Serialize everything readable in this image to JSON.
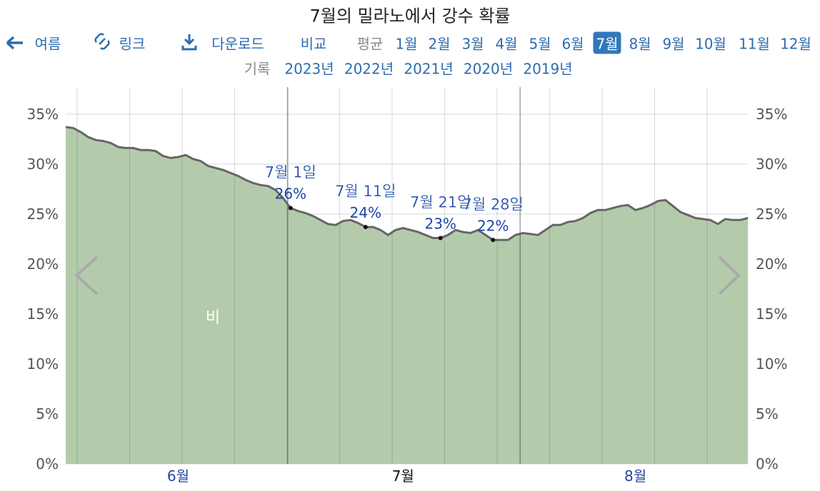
{
  "header": {
    "title": "7월의 밀라노에서 강수 확률",
    "nav": {
      "back": "여름",
      "link": "링크",
      "download": "다운로드",
      "compare": "비교",
      "average": "평균",
      "months": [
        "1월",
        "2월",
        "3월",
        "4월",
        "5월",
        "6월",
        "7월",
        "8월",
        "9월",
        "10월",
        "11월",
        "12월"
      ],
      "selected_month": 6,
      "records": "기록",
      "years": [
        "2023년",
        "2022년",
        "2021년",
        "2020년",
        "2019년"
      ]
    }
  },
  "chart_data": {
    "type": "area",
    "color": "#b4cbab",
    "line_color": "#666666",
    "grid": true,
    "categories": [
      null,
      null,
      null,
      null,
      null,
      null,
      null,
      null,
      null,
      null,
      null,
      null,
      null,
      null,
      null,
      "6월",
      null,
      null,
      null,
      null,
      null,
      null,
      null,
      null,
      null,
      null,
      null,
      null,
      null,
      null,
      null,
      null,
      null,
      null,
      null,
      null,
      null,
      null,
      null,
      null,
      null,
      null,
      null,
      null,
      null,
      "7월",
      null,
      null,
      null,
      null,
      null,
      null,
      null,
      null,
      null,
      null,
      null,
      null,
      null,
      null,
      null,
      null,
      null,
      null,
      null,
      null,
      null,
      null,
      null,
      null,
      null,
      null,
      null,
      null,
      null,
      null,
      "8월",
      null,
      null,
      null,
      null,
      null,
      null,
      null,
      null,
      null,
      null,
      null,
      null,
      null,
      null,
      null
    ],
    "values": [
      33.7,
      33.6,
      33.2,
      32.7,
      32.4,
      32.3,
      32.1,
      31.7,
      31.6,
      31.6,
      31.4,
      31.4,
      31.3,
      30.8,
      30.6,
      30.7,
      30.9,
      30.5,
      30.3,
      29.8,
      29.6,
      29.4,
      29.1,
      28.8,
      28.4,
      28.1,
      27.9,
      27.8,
      27.4,
      26.6,
      25.6,
      25.3,
      25.1,
      24.8,
      24.4,
      24.0,
      23.9,
      24.3,
      24.4,
      24.1,
      23.7,
      23.7,
      23.4,
      22.9,
      23.4,
      23.6,
      23.4,
      23.2,
      22.9,
      22.6,
      22.6,
      22.9,
      23.4,
      23.2,
      23.1,
      23.4,
      22.9,
      22.4,
      22.4,
      22.4,
      22.9,
      23.1,
      23.0,
      22.9,
      23.4,
      23.9,
      23.9,
      24.2,
      24.3,
      24.6,
      25.1,
      25.4,
      25.4,
      25.6,
      25.8,
      25.9,
      25.4,
      25.6,
      25.9,
      26.3,
      26.4,
      25.8,
      25.2,
      24.9,
      24.6,
      24.5,
      24.4,
      24.0,
      24.5,
      24.4,
      24.4,
      24.6
    ],
    "ylim": [
      0,
      37.7
    ],
    "yticks": [
      {
        "value": 0,
        "label": "0%"
      },
      {
        "value": 5,
        "label": "5%"
      },
      {
        "value": 10,
        "label": "10%"
      },
      {
        "value": 15,
        "label": "15%"
      },
      {
        "value": 20,
        "label": "20%"
      },
      {
        "value": 25,
        "label": "25%"
      },
      {
        "value": 30,
        "label": "30%"
      },
      {
        "value": 35,
        "label": "35%"
      }
    ],
    "area_label": "비",
    "annotations": [
      {
        "label": "7월 1일",
        "index": 30,
        "value": 25.6,
        "value_label": "26%"
      },
      {
        "label": "7월 11일",
        "index": 40,
        "value": 23.7,
        "value_label": "24%"
      },
      {
        "label": "7월 21일",
        "index": 50,
        "value": 22.6,
        "value_label": "23%"
      },
      {
        "label": "7월 28일",
        "index": 57,
        "value": 22.4,
        "value_label": "22%"
      }
    ]
  }
}
